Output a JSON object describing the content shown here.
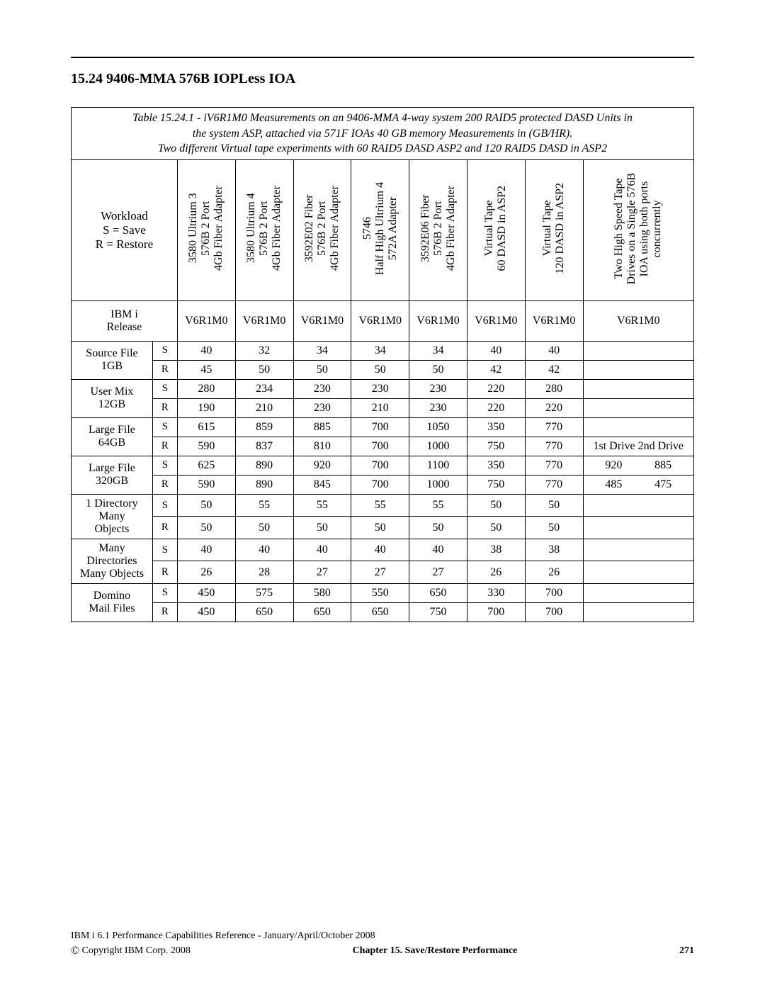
{
  "section_title": "15.24 9406-MMA 576B IOPLess IOA",
  "caption_lines": [
    "Table 15.24.1  - iV6R1M0 Measurements on an 9406-MMA 4-way system 200 RAID5 protected DASD Units in",
    "the system ASP, attached via 571F IOAs 40 GB memory Measurements in (GB/HR).",
    "Two different Virtual tape experiments with 60 RAID5 DASD ASP2 and 120 RAID5 DASD in ASP2"
  ],
  "workload_head": [
    "Workload",
    "S = Save",
    "R = Restore"
  ],
  "col_headers": [
    "3580 Ultrium 3\n576B 2 Port\n4Gb Fiber Adapter",
    "3580 Ultrium 4\n576B 2 Port\n4Gb Fiber Adapter",
    "3592E02 Fiber\n576B 2 Port\n4Gb Fiber Adapter",
    "5746\nHalf High Ultrium 4\n572A Adapter",
    "3592E06 Fiber\n576B 2 Port\n4Gb Fiber Adapter",
    "Virtual Tape\n60 DASD in ASP2",
    "Virtual Tape\n120 DASD in ASP2",
    "Two High Speed Tape\nDrives on a Single 576B\nIOA using both ports\nconcurrently"
  ],
  "release_label": [
    "IBM i",
    "Release"
  ],
  "release_row": [
    "V6R1M0",
    "V6R1M0",
    "V6R1M0",
    "V6R1M0",
    "V6R1M0",
    "V6R1M0",
    "V6R1M0",
    "V6R1M0"
  ],
  "groups": [
    {
      "label": [
        "Source File",
        "1GB"
      ],
      "S": [
        "40",
        "32",
        "34",
        "34",
        "34",
        "40",
        "40",
        ""
      ],
      "R": [
        "45",
        "50",
        "50",
        "50",
        "50",
        "42",
        "42",
        ""
      ]
    },
    {
      "label": [
        "User Mix",
        "12GB"
      ],
      "S": [
        "280",
        "234",
        "230",
        "230",
        "230",
        "220",
        "280",
        ""
      ],
      "R": [
        "190",
        "210",
        "230",
        "210",
        "230",
        "220",
        "220",
        ""
      ]
    },
    {
      "label": [
        "Large File",
        "64GB"
      ],
      "S": [
        "615",
        "859",
        "885",
        "700",
        "1050",
        "350",
        "770",
        ""
      ],
      "R": [
        "590",
        "837",
        "810",
        "700",
        "1000",
        "750",
        "770",
        "1st Drive 2nd Drive"
      ]
    },
    {
      "label": [
        "Large File",
        "320GB"
      ],
      "S": [
        "625",
        "890",
        "920",
        "700",
        "1100",
        "350",
        "770",
        [
          "920",
          "885"
        ]
      ],
      "R": [
        "590",
        "890",
        "845",
        "700",
        "1000",
        "750",
        "770",
        [
          "485",
          "475"
        ]
      ]
    },
    {
      "label": [
        "1 Directory",
        "Many",
        "Objects"
      ],
      "S": [
        "50",
        "55",
        "55",
        "55",
        "55",
        "50",
        "50",
        ""
      ],
      "R": [
        "50",
        "50",
        "50",
        "50",
        "50",
        "50",
        "50",
        ""
      ]
    },
    {
      "label": [
        "Many",
        "Directories",
        "Many Objects"
      ],
      "S": [
        "40",
        "40",
        "40",
        "40",
        "40",
        "38",
        "38",
        ""
      ],
      "R": [
        "26",
        "28",
        "27",
        "27",
        "27",
        "26",
        "26",
        ""
      ]
    },
    {
      "label": [
        "Domino",
        "Mail Files"
      ],
      "S": [
        "450",
        "575",
        "580",
        "550",
        "650",
        "330",
        "700",
        ""
      ],
      "R": [
        "450",
        "650",
        "650",
        "650",
        "750",
        "700",
        "700",
        ""
      ]
    }
  ],
  "footer_top": "IBM i 6.1 Performance Capabilities Reference - January/April/October 2008",
  "footer_copyright": " Copyright IBM Corp. 2008",
  "footer_chapter": "Chapter 15.  Save/Restore Performance",
  "footer_page": "271"
}
